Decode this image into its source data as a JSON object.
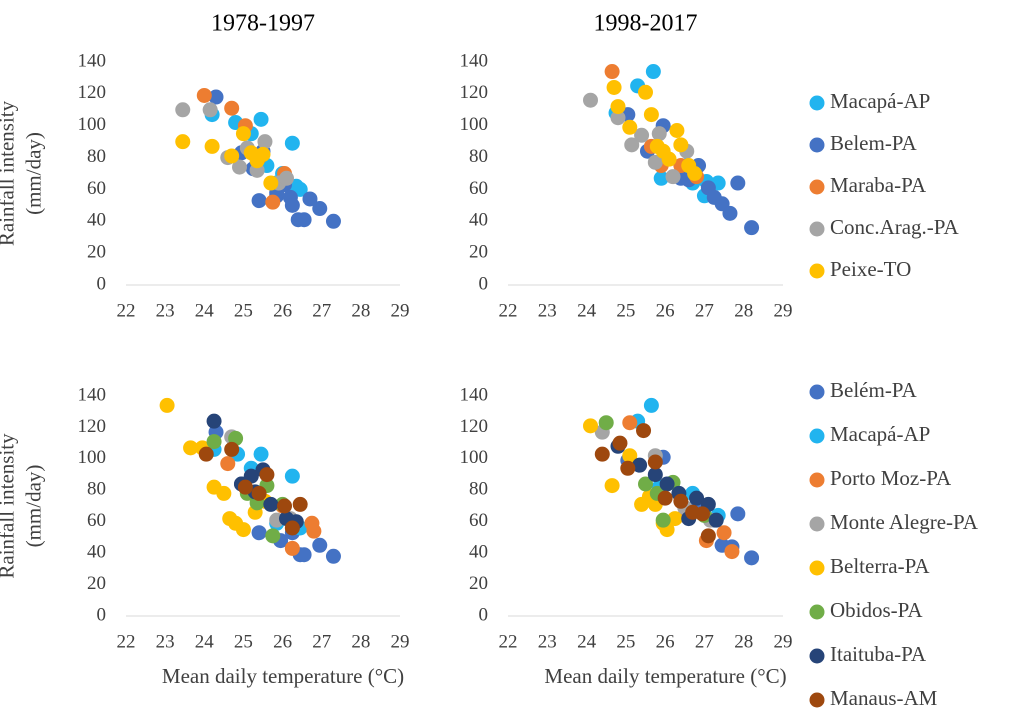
{
  "chart_data": [
    {
      "type": "scatter",
      "title": "1978-1997",
      "ylabel": [
        "Rainfall intensity",
        "(mm/day)"
      ],
      "xlim": [
        22,
        29
      ],
      "xticks": [
        22,
        23,
        24,
        25,
        26,
        27,
        28,
        29
      ],
      "ylim": [
        0,
        140
      ],
      "yticks": [
        0,
        20,
        40,
        60,
        80,
        100,
        120,
        140
      ],
      "series": [
        {
          "color": "#21b4ef",
          "x": [
            24.2,
            24.8,
            25.2,
            25.45,
            25.6,
            26.0,
            26.25,
            26.35,
            26.45,
            25.85
          ],
          "values": [
            107,
            102,
            95,
            104,
            75,
            70,
            89,
            62,
            60,
            64
          ]
        },
        {
          "color": "#4472c4",
          "x": [
            24.3,
            24.95,
            25.25,
            25.4,
            25.5,
            25.85,
            26.05,
            26.2,
            26.25,
            26.4,
            26.55,
            26.7,
            26.95,
            27.3,
            25.85
          ],
          "values": [
            118,
            83,
            73,
            53,
            84,
            56,
            63,
            55,
            50,
            41,
            41,
            54,
            48,
            40,
            58
          ]
        },
        {
          "color": "#ed7d31",
          "x": [
            24.0,
            24.7,
            25.05,
            25.4,
            25.75,
            26.05
          ],
          "values": [
            119,
            111,
            100,
            80,
            52,
            70
          ]
        },
        {
          "color": "#a5a5a5",
          "x": [
            23.45,
            24.15,
            24.6,
            24.9,
            25.1,
            25.35,
            25.55,
            25.9,
            26.1
          ],
          "values": [
            110,
            110,
            80,
            74,
            86,
            72,
            90,
            64,
            67
          ]
        },
        {
          "color": "#ffc000",
          "x": [
            23.45,
            24.2,
            24.7,
            25.0,
            25.2,
            25.35,
            25.5,
            25.7
          ],
          "values": [
            90,
            87,
            81,
            95,
            83,
            78,
            82,
            64
          ]
        }
      ]
    },
    {
      "type": "scatter",
      "title": "1998-2017",
      "legend": "right",
      "xlim": [
        22,
        29
      ],
      "xticks": [
        22,
        23,
        24,
        25,
        26,
        27,
        28,
        29
      ],
      "ylim": [
        0,
        140
      ],
      "yticks": [
        0,
        20,
        40,
        60,
        80,
        100,
        120,
        140
      ],
      "series": [
        {
          "name": "Macapá-AP",
          "color": "#21b4ef",
          "x": [
            25.3,
            25.7,
            24.75,
            25.9,
            26.7,
            27.0,
            27.05,
            27.35,
            26.55
          ],
          "values": [
            125,
            134,
            108,
            67,
            64,
            56,
            65,
            64,
            75
          ]
        },
        {
          "name": "Belem-PA",
          "color": "#4472c4",
          "x": [
            25.05,
            25.55,
            25.95,
            26.4,
            26.6,
            26.85,
            27.1,
            27.25,
            27.45,
            27.65,
            27.85,
            28.2
          ],
          "values": [
            107,
            84,
            100,
            67,
            66,
            75,
            61,
            55,
            51,
            45,
            64,
            36
          ]
        },
        {
          "name": "Maraba-PA",
          "color": "#ed7d31",
          "x": [
            24.65,
            25.65,
            25.9,
            26.4,
            26.8
          ],
          "values": [
            134,
            87,
            75,
            75,
            68
          ]
        },
        {
          "name": "Conc.Arag.-PA",
          "color": "#a5a5a5",
          "x": [
            24.1,
            24.8,
            25.15,
            25.4,
            25.75,
            25.85,
            26.2,
            26.55
          ],
          "values": [
            116,
            105,
            88,
            94,
            77,
            95,
            68,
            84
          ]
        },
        {
          "name": "Peixe-TO",
          "color": "#ffc000",
          "x": [
            24.7,
            24.8,
            25.1,
            25.5,
            25.65,
            25.8,
            25.95,
            26.1,
            26.3,
            26.4,
            26.6,
            26.75
          ],
          "values": [
            124,
            112,
            99,
            121,
            107,
            87,
            84,
            79,
            97,
            88,
            75,
            70
          ]
        }
      ]
    },
    {
      "type": "scatter",
      "xlabel": "Mean daily temperature (°C)",
      "ylabel": [
        "Rainfall intensity",
        "(mm/day)"
      ],
      "xlim": [
        22,
        29
      ],
      "xticks": [
        22,
        23,
        24,
        25,
        26,
        27,
        28,
        29
      ],
      "ylim": [
        0,
        140
      ],
      "yticks": [
        0,
        20,
        40,
        60,
        80,
        100,
        120,
        140
      ],
      "series": [
        {
          "color": "#4472c4",
          "x": [
            24.95,
            25.4,
            25.95,
            26.25,
            26.45,
            26.55,
            26.95,
            27.3,
            24.3
          ],
          "values": [
            84,
            53,
            48,
            53,
            39,
            39,
            45,
            38,
            117
          ]
        },
        {
          "color": "#21b4ef",
          "x": [
            24.25,
            24.85,
            25.2,
            25.45,
            26.25,
            25.85,
            26.45
          ],
          "values": [
            106,
            103,
            94,
            103,
            89,
            59,
            56
          ]
        },
        {
          "color": "#ed7d31",
          "x": [
            24.6,
            26.0,
            26.25,
            26.75,
            26.8
          ],
          "values": [
            97,
            70,
            43,
            59,
            54
          ]
        },
        {
          "color": "#a5a5a5",
          "x": [
            24.7,
            25.85,
            26.2
          ],
          "values": [
            114,
            61,
            62
          ]
        },
        {
          "color": "#ffc000",
          "x": [
            23.05,
            23.65,
            23.95,
            24.25,
            24.5,
            24.65,
            24.8,
            25.0,
            25.3,
            25.55
          ],
          "values": [
            134,
            107,
            107,
            82,
            78,
            62,
            59,
            55,
            66,
            73
          ]
        },
        {
          "color": "#70ad47",
          "x": [
            24.25,
            24.8,
            25.1,
            25.35,
            25.6,
            25.75,
            26.0
          ],
          "values": [
            111,
            113,
            78,
            72,
            83,
            51,
            71
          ]
        },
        {
          "color": "#264478",
          "x": [
            24.25,
            24.95,
            25.3,
            25.5,
            25.7,
            26.1,
            26.35,
            25.2
          ],
          "values": [
            124,
            84,
            79,
            93,
            71,
            62,
            60,
            89
          ]
        },
        {
          "color": "#9e480e",
          "x": [
            24.05,
            24.7,
            25.05,
            25.4,
            25.6,
            26.05,
            26.25,
            26.45
          ],
          "values": [
            103,
            106,
            82,
            78,
            90,
            70,
            56,
            71
          ]
        }
      ]
    },
    {
      "type": "scatter",
      "xlabel": "Mean daily temperature (°C)",
      "legend": "right",
      "xlim": [
        22,
        29
      ],
      "xticks": [
        22,
        23,
        24,
        25,
        26,
        27,
        28,
        29
      ],
      "ylim": [
        0,
        140
      ],
      "yticks": [
        0,
        20,
        40,
        60,
        80,
        100,
        120,
        140
      ],
      "series": [
        {
          "name": "Belém-PA",
          "color": "#4472c4",
          "x": [
            25.05,
            25.95,
            26.75,
            27.25,
            27.45,
            27.7,
            27.85,
            28.2
          ],
          "values": [
            99,
            101,
            69,
            61,
            45,
            44,
            65,
            37
          ]
        },
        {
          "name": "Macapá-AP",
          "color": "#21b4ef",
          "x": [
            25.3,
            25.65,
            25.85,
            26.7,
            27.35
          ],
          "values": [
            124,
            134,
            82,
            78,
            64
          ]
        },
        {
          "name": "Porto Moz-PA",
          "color": "#ed7d31",
          "x": [
            25.1,
            26.5,
            27.05,
            27.5,
            27.7
          ],
          "values": [
            123,
            64,
            48,
            53,
            41
          ]
        },
        {
          "name": "Monte Alegre-PA",
          "color": "#a5a5a5",
          "x": [
            24.4,
            25.75,
            26.5,
            27.15
          ],
          "values": [
            117,
            102,
            69,
            61
          ]
        },
        {
          "name": "Belterra-PA",
          "color": "#ffc000",
          "x": [
            24.1,
            24.65,
            25.1,
            25.4,
            25.6,
            25.95,
            26.05,
            26.25,
            25.75
          ],
          "values": [
            121,
            83,
            102,
            71,
            76,
            59,
            55,
            62,
            71
          ]
        },
        {
          "name": "Obidos-PA",
          "color": "#70ad47",
          "x": [
            24.5,
            25.5,
            25.8,
            25.95,
            26.2,
            27.0
          ],
          "values": [
            123,
            84,
            78,
            61,
            85,
            64
          ]
        },
        {
          "name": "Itaituba-PA",
          "color": "#264478",
          "x": [
            24.8,
            25.35,
            25.75,
            26.05,
            26.35,
            26.6,
            26.8,
            27.1,
            27.3
          ],
          "values": [
            108,
            96,
            90,
            84,
            78,
            62,
            75,
            71,
            61
          ]
        },
        {
          "name": "Manaus-AM",
          "color": "#9e480e",
          "x": [
            24.4,
            24.85,
            25.05,
            25.45,
            25.75,
            26.0,
            26.4,
            26.7,
            26.95,
            27.1
          ],
          "values": [
            103,
            110,
            94,
            118,
            98,
            75,
            73,
            66,
            65,
            51
          ]
        }
      ]
    }
  ]
}
